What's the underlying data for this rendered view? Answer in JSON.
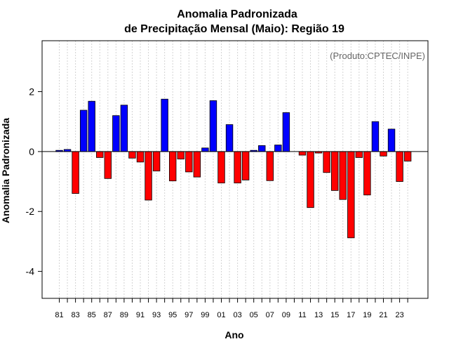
{
  "chart_data": {
    "type": "bar",
    "title_line1": "Anomalia Padronizada",
    "title_line2": "de Precipitação Mensal (Maio): Região 19",
    "xlabel": "Ano",
    "ylabel": "Anomalia Padronizada",
    "credit": "(Produto:CPTEC/INPE)",
    "ylim": [
      -4.9,
      3.7
    ],
    "yticks": [
      -4,
      -2,
      0,
      2
    ],
    "ytick_labels": [
      "-4",
      "-2",
      "0",
      "2"
    ],
    "categories": [
      "81",
      "82",
      "83",
      "84",
      "85",
      "86",
      "87",
      "88",
      "89",
      "90",
      "91",
      "92",
      "93",
      "94",
      "95",
      "96",
      "97",
      "98",
      "99",
      "00",
      "01",
      "02",
      "03",
      "04",
      "05",
      "06",
      "07",
      "08",
      "09",
      "10",
      "11",
      "12",
      "13",
      "14",
      "15",
      "16",
      "17",
      "18",
      "19",
      "20",
      "21",
      "22",
      "23",
      "24"
    ],
    "xtick_labels": [
      "81",
      "83",
      "85",
      "87",
      "89",
      "91",
      "93",
      "95",
      "97",
      "99",
      "01",
      "03",
      "05",
      "07",
      "09",
      "11",
      "13",
      "15",
      "17",
      "19",
      "21",
      "23"
    ],
    "values": [
      0.04,
      0.07,
      -1.4,
      1.38,
      1.68,
      -0.2,
      -0.9,
      1.2,
      1.55,
      -0.22,
      -0.35,
      -1.62,
      -0.65,
      1.75,
      -0.98,
      -0.25,
      -0.68,
      -0.85,
      0.12,
      1.7,
      -1.05,
      0.9,
      -1.05,
      -0.95,
      0.04,
      0.2,
      -0.97,
      0.22,
      1.3,
      0.0,
      -0.12,
      -1.87,
      -0.05,
      -0.7,
      -1.3,
      -1.6,
      -2.88,
      -0.2,
      -1.45,
      1.0,
      -0.15,
      0.75,
      -1.0,
      -0.32
    ],
    "positive_color": "#0000ff",
    "negative_color": "#ff0000",
    "grid": true
  }
}
